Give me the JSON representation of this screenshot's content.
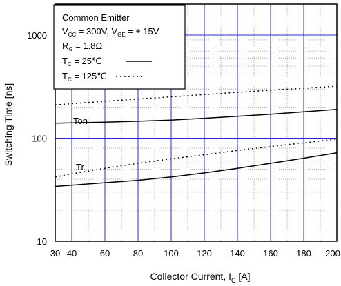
{
  "chart_data": {
    "type": "line",
    "x": [
      30,
      40,
      60,
      80,
      100,
      120,
      140,
      160,
      180,
      200
    ],
    "xlim": [
      30,
      200
    ],
    "ylim": [
      10,
      2000
    ],
    "yscale": "log",
    "grid": true,
    "xticks": [
      "30",
      "40",
      "60",
      "80",
      "100",
      "120",
      "140",
      "160",
      "180",
      "200"
    ],
    "yticks": [
      {
        "value": 10,
        "label": "10"
      },
      {
        "value": 100,
        "label": "100"
      },
      {
        "value": 1000,
        "label": "1000"
      }
    ],
    "xlabel": {
      "main": "Collector Current, I",
      "sub": "C",
      "unit": " [A]"
    },
    "ylabel": "Switching Time [ns]",
    "legend": {
      "line1": "Common Emitter",
      "line2": {
        "v1": "V",
        "v1_sub": "CC",
        "v1_rest": " = 300V, V",
        "v2_sub": "GE",
        "v2_rest": " = ±  15V"
      },
      "line3": {
        "main": "R",
        "sub": "G",
        "rest": " = 1.8Ω"
      },
      "line4": {
        "main": "T",
        "sub": "C",
        "rest": " =   25℃"
      },
      "line5": {
        "main": "T",
        "sub": "C",
        "rest": " = 125℃"
      },
      "placement": "top-left"
    },
    "series": [
      {
        "name": "Ton",
        "temp": "25",
        "style": "solid",
        "values": [
          140,
          141,
          143,
          146,
          150,
          156,
          163,
          171,
          180,
          190
        ]
      },
      {
        "name": "Ton",
        "temp": "125",
        "style": "dotted",
        "values": [
          210,
          216,
          228,
          240,
          252,
          265,
          278,
          292,
          305,
          320
        ]
      },
      {
        "name": "Tr",
        "temp": "25",
        "style": "solid",
        "values": [
          34,
          35,
          37,
          39,
          42,
          46,
          51,
          57,
          64,
          72
        ]
      },
      {
        "name": "Tr",
        "temp": "125",
        "style": "dotted",
        "values": [
          42,
          45,
          51,
          57,
          63,
          69,
          76,
          83,
          90,
          98
        ]
      }
    ],
    "labels": {
      "ton": "Ton",
      "tr": "Tr"
    },
    "colors": {
      "grid_major": "#2323ff",
      "grid_minor": "#8c8cff",
      "curve": "#000000"
    }
  }
}
